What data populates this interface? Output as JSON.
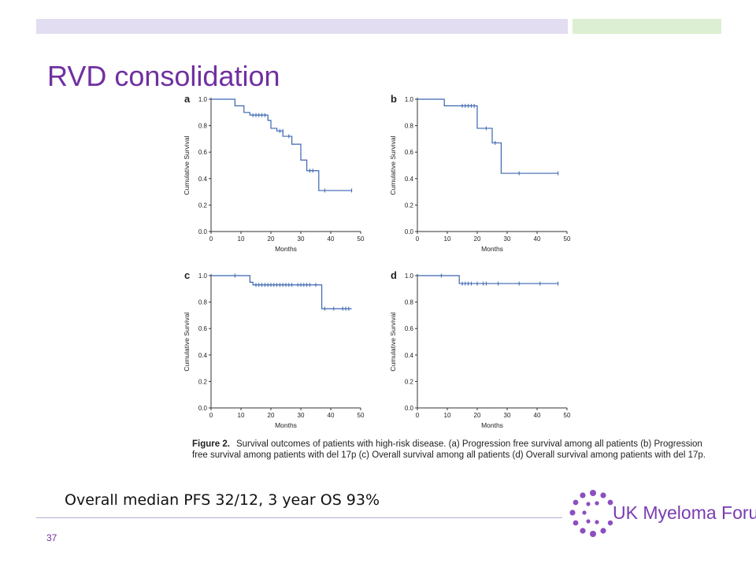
{
  "slide": {
    "title": "RVD consolidation",
    "summary": "Overall median PFS 32/12, 3 year OS 93%",
    "page_number": "37",
    "caption_label": "Figure 2.",
    "caption_text": "Survival outcomes of patients with high-risk disease. (a) Progression free survival among all patients (b) Progression free survival among patients with del 17p (c) Overall survival among all patients (d) Overall survival among patients with del 17p.",
    "logo_text": "UK Myeloma Forum",
    "colors": {
      "title": "#7030a0",
      "curve": "#3a66b0",
      "logo_dots": "#8c4fc0"
    }
  },
  "chart_data": [
    {
      "type": "line",
      "panel_label": "a",
      "xlabel": "Months",
      "ylabel": "Cumulative Survival",
      "xlim": [
        0,
        50
      ],
      "ylim": [
        0.0,
        1.0
      ],
      "xticks": [
        "0",
        "10",
        "20",
        "30",
        "40",
        "50"
      ],
      "yticks": [
        "0.0",
        "0.2",
        "0.4",
        "0.6",
        "0.8",
        "1.0"
      ],
      "steps": [
        [
          0,
          1.0
        ],
        [
          8,
          0.95
        ],
        [
          11,
          0.9
        ],
        [
          13,
          0.88
        ],
        [
          19,
          0.84
        ],
        [
          20,
          0.78
        ],
        [
          22,
          0.76
        ],
        [
          24,
          0.72
        ],
        [
          27,
          0.66
        ],
        [
          30,
          0.54
        ],
        [
          32,
          0.46
        ],
        [
          36,
          0.31
        ],
        [
          47,
          0.31
        ]
      ],
      "censored": [
        [
          14,
          0.88
        ],
        [
          15,
          0.88
        ],
        [
          16,
          0.88
        ],
        [
          17,
          0.88
        ],
        [
          18,
          0.88
        ],
        [
          23,
          0.76
        ],
        [
          24,
          0.76
        ],
        [
          26,
          0.72
        ],
        [
          33,
          0.46
        ],
        [
          34,
          0.46
        ],
        [
          38,
          0.31
        ],
        [
          47,
          0.31
        ]
      ]
    },
    {
      "type": "line",
      "panel_label": "b",
      "xlabel": "Months",
      "ylabel": "Cumulative Survival",
      "xlim": [
        0,
        50
      ],
      "ylim": [
        0.0,
        1.0
      ],
      "xticks": [
        "0",
        "10",
        "20",
        "30",
        "40",
        "50"
      ],
      "yticks": [
        "0.0",
        "0.2",
        "0.4",
        "0.6",
        "0.8",
        "1.0"
      ],
      "steps": [
        [
          0,
          1.0
        ],
        [
          9,
          0.95
        ],
        [
          20,
          0.78
        ],
        [
          25,
          0.67
        ],
        [
          28,
          0.44
        ],
        [
          47,
          0.44
        ]
      ],
      "censored": [
        [
          15,
          0.95
        ],
        [
          16,
          0.95
        ],
        [
          17,
          0.95
        ],
        [
          18,
          0.95
        ],
        [
          19,
          0.95
        ],
        [
          23,
          0.78
        ],
        [
          26,
          0.67
        ],
        [
          34,
          0.44
        ],
        [
          47,
          0.44
        ]
      ]
    },
    {
      "type": "line",
      "panel_label": "c",
      "xlabel": "Months",
      "ylabel": "Cumulative Survival",
      "xlim": [
        0,
        50
      ],
      "ylim": [
        0.0,
        1.0
      ],
      "xticks": [
        "0",
        "10",
        "20",
        "30",
        "40",
        "50"
      ],
      "yticks": [
        "0.0",
        "0.2",
        "0.4",
        "0.6",
        "0.8",
        "1.0"
      ],
      "steps": [
        [
          0,
          1.0
        ],
        [
          13,
          0.95
        ],
        [
          14,
          0.93
        ],
        [
          37,
          0.75
        ],
        [
          47,
          0.75
        ]
      ],
      "censored": [
        [
          8,
          1.0
        ],
        [
          15,
          0.93
        ],
        [
          16,
          0.93
        ],
        [
          17,
          0.93
        ],
        [
          18,
          0.93
        ],
        [
          19,
          0.93
        ],
        [
          20,
          0.93
        ],
        [
          21,
          0.93
        ],
        [
          22,
          0.93
        ],
        [
          23,
          0.93
        ],
        [
          24,
          0.93
        ],
        [
          25,
          0.93
        ],
        [
          26,
          0.93
        ],
        [
          27,
          0.93
        ],
        [
          29,
          0.93
        ],
        [
          30,
          0.93
        ],
        [
          31,
          0.93
        ],
        [
          32,
          0.93
        ],
        [
          33,
          0.93
        ],
        [
          35,
          0.93
        ],
        [
          38,
          0.75
        ],
        [
          41,
          0.75
        ],
        [
          44,
          0.75
        ],
        [
          45,
          0.75
        ],
        [
          46,
          0.75
        ]
      ]
    },
    {
      "type": "line",
      "panel_label": "d",
      "xlabel": "Months",
      "ylabel": "Cumulative Survival",
      "xlim": [
        0,
        50
      ],
      "ylim": [
        0.0,
        1.0
      ],
      "xticks": [
        "0",
        "10",
        "20",
        "30",
        "40",
        "50"
      ],
      "yticks": [
        "0.0",
        "0.2",
        "0.4",
        "0.6",
        "0.8",
        "1.0"
      ],
      "steps": [
        [
          0,
          1.0
        ],
        [
          14,
          0.94
        ],
        [
          47,
          0.94
        ]
      ],
      "censored": [
        [
          8,
          1.0
        ],
        [
          15,
          0.94
        ],
        [
          16,
          0.94
        ],
        [
          17,
          0.94
        ],
        [
          18,
          0.94
        ],
        [
          20,
          0.94
        ],
        [
          22,
          0.94
        ],
        [
          23,
          0.94
        ],
        [
          27,
          0.94
        ],
        [
          34,
          0.94
        ],
        [
          41,
          0.94
        ],
        [
          47,
          0.94
        ]
      ]
    }
  ]
}
